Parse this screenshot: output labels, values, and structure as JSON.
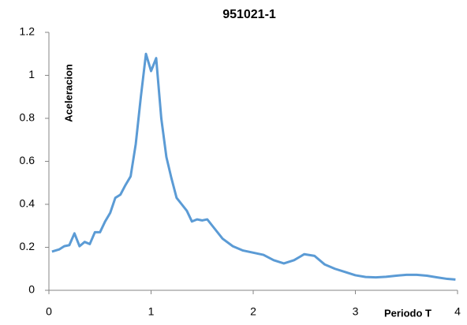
{
  "chart_data": {
    "type": "line",
    "title": "951021-1",
    "x_label": "Periodo T",
    "y_label": "Aceleracion",
    "x": [
      0.03,
      0.1,
      0.15,
      0.2,
      0.25,
      0.3,
      0.35,
      0.4,
      0.45,
      0.5,
      0.55,
      0.6,
      0.65,
      0.7,
      0.75,
      0.8,
      0.85,
      0.9,
      0.95,
      1.0,
      1.05,
      1.1,
      1.15,
      1.2,
      1.25,
      1.3,
      1.35,
      1.4,
      1.45,
      1.5,
      1.55,
      1.6,
      1.7,
      1.8,
      1.9,
      2.0,
      2.1,
      2.2,
      2.3,
      2.4,
      2.5,
      2.6,
      2.7,
      2.8,
      2.9,
      3.0,
      3.1,
      3.2,
      3.3,
      3.4,
      3.5,
      3.6,
      3.7,
      3.8,
      3.9,
      3.98
    ],
    "series": [
      {
        "name": "951021-1",
        "color": "#5b9bd5",
        "values": [
          0.18,
          0.19,
          0.205,
          0.21,
          0.265,
          0.205,
          0.225,
          0.215,
          0.27,
          0.27,
          0.32,
          0.36,
          0.43,
          0.445,
          0.49,
          0.53,
          0.68,
          0.9,
          1.1,
          1.02,
          1.08,
          0.8,
          0.62,
          0.52,
          0.43,
          0.4,
          0.37,
          0.32,
          0.33,
          0.325,
          0.33,
          0.3,
          0.24,
          0.205,
          0.185,
          0.175,
          0.165,
          0.14,
          0.125,
          0.14,
          0.168,
          0.16,
          0.12,
          0.1,
          0.085,
          0.07,
          0.062,
          0.06,
          0.063,
          0.068,
          0.072,
          0.072,
          0.068,
          0.06,
          0.053,
          0.05
        ]
      }
    ],
    "xlim": [
      0,
      4
    ],
    "xticks": [
      0,
      1,
      2,
      3,
      4
    ],
    "ylim": [
      0,
      1.2
    ],
    "yticks": [
      0,
      0.2,
      0.4,
      0.6,
      0.8,
      1,
      1.2
    ]
  }
}
